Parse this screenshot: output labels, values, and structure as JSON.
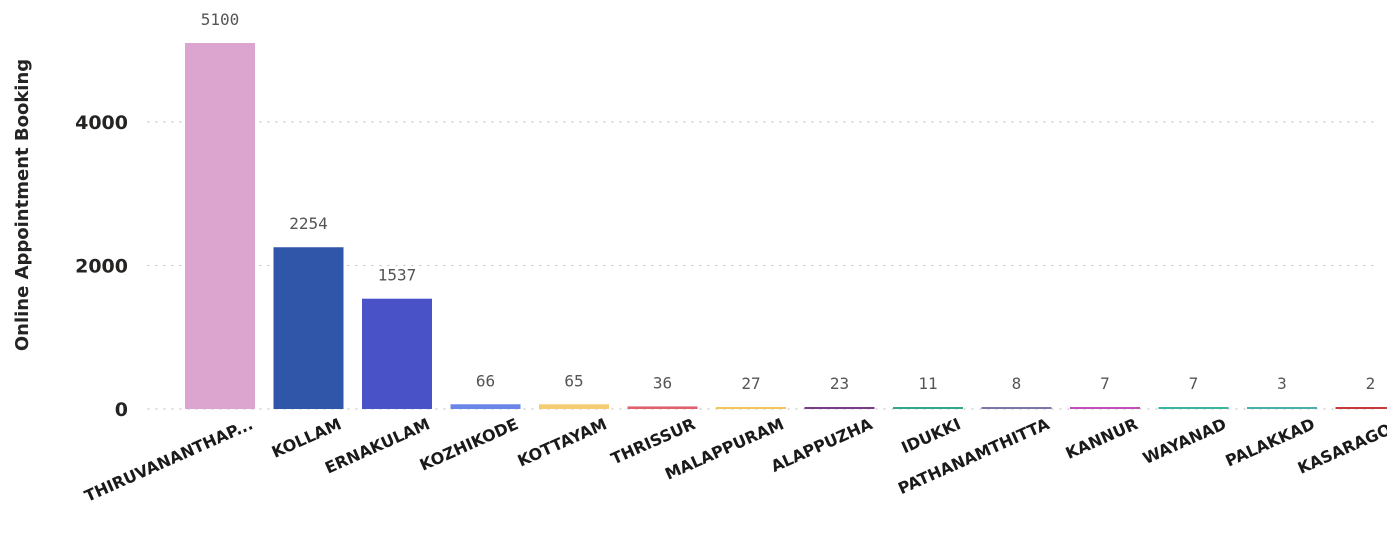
{
  "chart_data": {
    "type": "bar",
    "title": "",
    "xlabel": "",
    "ylabel": "Online Appointment Booking",
    "categories": [
      "THIRUVANANTHAP...",
      "KOLLAM",
      "ERNAKULAM",
      "KOZHIKODE",
      "KOTTAYAM",
      "THRISSUR",
      "MALAPPURAM",
      "ALAPPUZHA",
      "IDUKKI",
      "PATHANAMTHITTA",
      "KANNUR",
      "WAYANAD",
      "PALAKKAD",
      "KASARAGOD"
    ],
    "values": [
      5100,
      2254,
      1537,
      66,
      65,
      36,
      27,
      23,
      11,
      8,
      7,
      7,
      3,
      2
    ],
    "colors": [
      "#dca5cf",
      "#2f56a8",
      "#4a52c8",
      "#6a86e8",
      "#f5cc72",
      "#e0606e",
      "#f2c65a",
      "#7a3a8a",
      "#33a88a",
      "#7a78a8",
      "#c050b8",
      "#3ab6a0",
      "#4ab2a8",
      "#c83a3a"
    ],
    "yticks": [
      0,
      2000,
      4000
    ],
    "ylim": [
      0,
      5100
    ],
    "grid": true,
    "data_labels": true
  }
}
